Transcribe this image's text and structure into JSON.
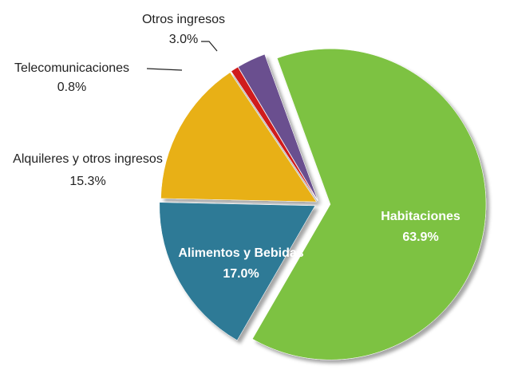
{
  "chart_data": {
    "type": "pie",
    "categories": [
      "Habitaciones",
      "Alimentos y Bebidas",
      "Alquileres y otros ingresos",
      "Telecomunicaciones",
      "Otros ingresos"
    ],
    "values": [
      63.9,
      17.0,
      15.3,
      0.8,
      3.0
    ],
    "value_labels": [
      "63.9%",
      "17.0%",
      "15.3%",
      "0.8%",
      "3.0%"
    ],
    "colors": [
      "#7dc242",
      "#2e7a96",
      "#e8b014",
      "#d01e1e",
      "#6b4f8f"
    ]
  }
}
